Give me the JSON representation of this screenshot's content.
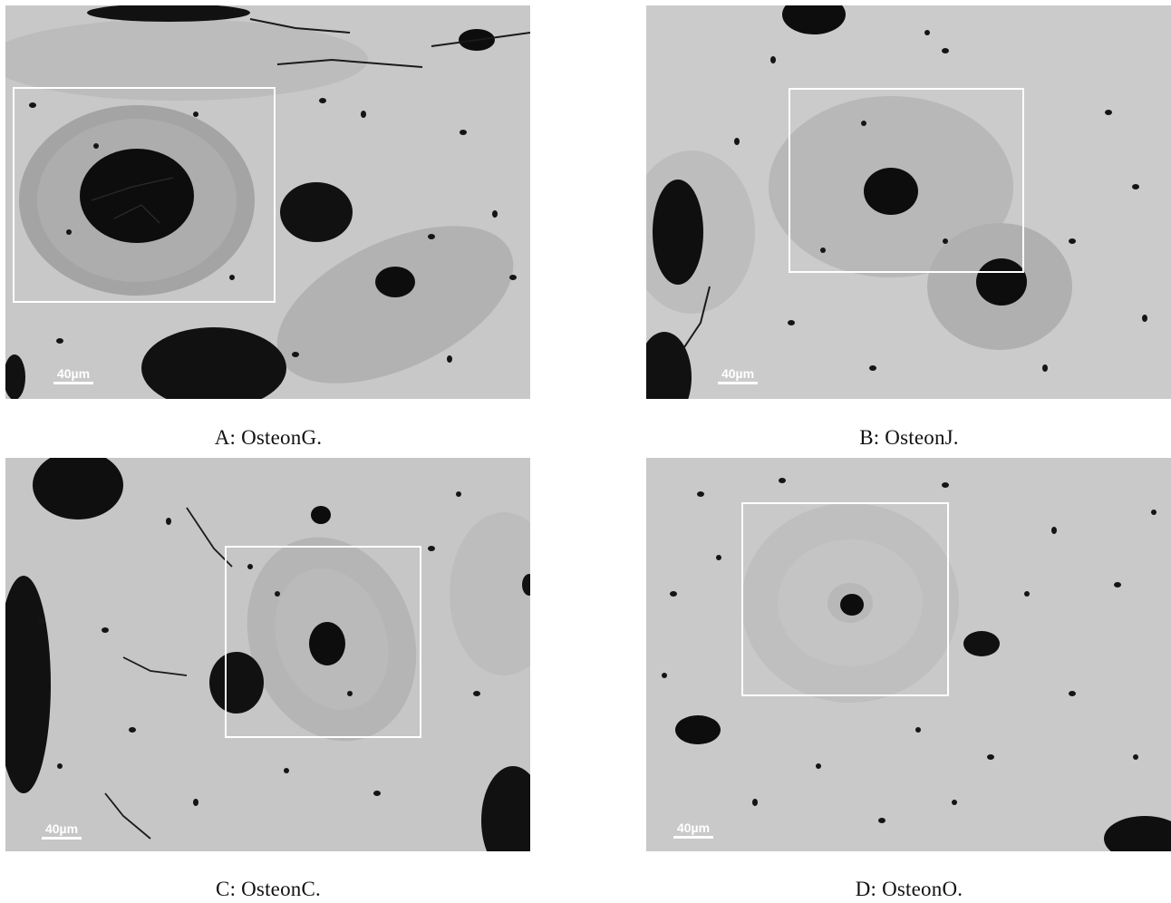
{
  "panels": [
    {
      "id": "A",
      "caption": "A: OsteonG.",
      "scale_label": "40µm"
    },
    {
      "id": "B",
      "caption": "B: OsteonJ.",
      "scale_label": "40µm"
    },
    {
      "id": "C",
      "caption": "C: OsteonC.",
      "scale_label": "40µm"
    },
    {
      "id": "D",
      "caption": "D: OsteonO.",
      "scale_label": "40µm"
    }
  ],
  "colors": {
    "bone_matrix": "#c9c9c9",
    "osteon_ring": "#a9a9a9",
    "canal": "#0a0a0a",
    "roi_box": "#ffffff",
    "scale_bar": "#ffffff"
  }
}
